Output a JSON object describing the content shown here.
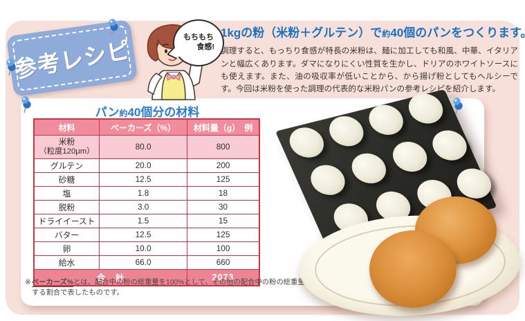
{
  "badge": {
    "label": "参考レシピ"
  },
  "speech_bubble": {
    "line1": "もちもち",
    "line2": "食感!"
  },
  "intro": {
    "title": {
      "pre": "1kgの粉（米粉＋グルテン）で",
      "approx": "約",
      "post": "40個のパンをつくります。"
    },
    "body": "調理すると、もっちり食感が特長の米粉は、麺に加工しても和風、中華、イタリアンと幅広くあります。ダマになりにくい性質を生かし、ドリアのホワイトソースにも使えます。また、油の吸収率が低いことから、から揚げ粉としてもヘルシーです。今回は米粉を使った調理の代表的な米粉パンの参考レシピを紹介します。"
  },
  "recipe": {
    "title": {
      "pre": "パン",
      "approx": "約",
      "post": "40個分の材料"
    },
    "table": {
      "headers": [
        "材料",
        "ベーカーズ（%）",
        "材料量（g）　例"
      ],
      "rows": [
        {
          "name": "米粉",
          "name2": "（粒度120μm）",
          "pct": "80.0",
          "amount": "800",
          "highlight": true
        },
        {
          "name": "グルテン",
          "pct": "20.0",
          "amount": "200"
        },
        {
          "name": "砂糖",
          "pct": "12.5",
          "amount": "125"
        },
        {
          "name": "塩",
          "pct": "1.8",
          "amount": "18"
        },
        {
          "name": "脱粉",
          "pct": "3.0",
          "amount": "30"
        },
        {
          "name": "ドライイースト",
          "pct": "1.5",
          "amount": "15"
        },
        {
          "name": "バター",
          "pct": "12.5",
          "amount": "125"
        },
        {
          "name": "卵",
          "pct": "10.0",
          "amount": "100"
        },
        {
          "name": "給水",
          "pct": "66.0",
          "amount": "660"
        }
      ],
      "total_label": "合　計",
      "total_value": "2073"
    },
    "footnote": {
      "marker": "※",
      "term": "ベーカーズ%",
      "rest": "とは、配合中の粉の総重量を100%として、その他の配合中の粉の総重量に対する割合で表したものです。"
    }
  },
  "colors": {
    "flyer_pink": "#F8E0DA",
    "badge_blue": "#8EABD9",
    "accent_blue": "#1B72C3",
    "table_border_red": "#CE3340",
    "header_row_pink": "#F18C9C",
    "highlight_row_pink": "#F9CBD4",
    "total_row_pink": "#ED8494"
  }
}
